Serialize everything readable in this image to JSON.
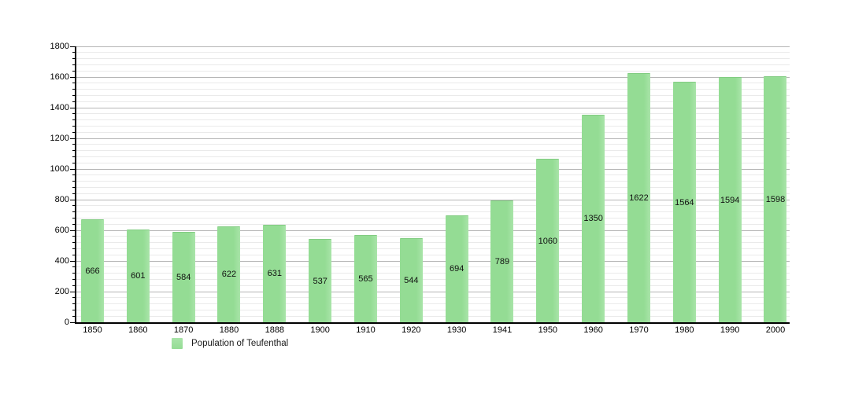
{
  "chart_data": {
    "type": "bar",
    "title": "",
    "xlabel": "",
    "ylabel": "",
    "legend": "Population of Teufenthal",
    "legend_position": "bottom-left",
    "categories": [
      "1850",
      "1860",
      "1870",
      "1880",
      "1888",
      "1900",
      "1910",
      "1920",
      "1930",
      "1941",
      "1950",
      "1960",
      "1970",
      "1980",
      "1990",
      "2000"
    ],
    "values": [
      666,
      601,
      584,
      622,
      631,
      537,
      565,
      544,
      694,
      789,
      1060,
      1350,
      1622,
      1564,
      1594,
      1598
    ],
    "ylim": [
      0,
      1800
    ],
    "y_major_step": 200,
    "y_minor_step": 40,
    "grid": "on",
    "colors": {
      "bar_fill": "#94dc94",
      "bar_fill_light": "#a9e4a9",
      "bar_edge": "#82cc82",
      "grid_major": "#b5b5b5",
      "grid_minor": "#eaeaea",
      "axis": "#000000",
      "text": "#000000",
      "background": "#ffffff"
    }
  }
}
